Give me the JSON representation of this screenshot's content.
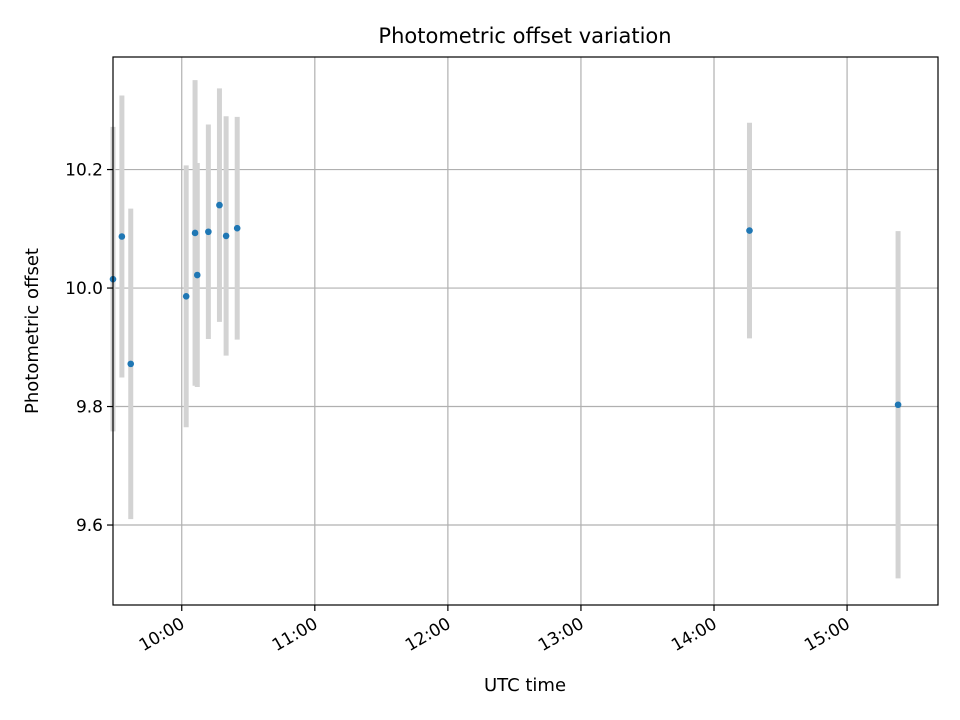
{
  "chart_data": {
    "type": "scatter",
    "title": "Photometric offset variation",
    "xlabel": "UTC time",
    "ylabel": "Photometric offset",
    "x_tick_labels": [
      "10:00",
      "11:00",
      "12:00",
      "13:00",
      "14:00",
      "15:00"
    ],
    "y_tick_labels": [
      "9.6",
      "9.8",
      "10.0",
      "10.2"
    ],
    "xlim": [
      "09:42",
      "15:41"
    ],
    "ylim": [
      9.465,
      10.39
    ],
    "grid": true,
    "marker_color": "#1f77b4",
    "errorbar_color": "#d3d3d3",
    "points": [
      {
        "time": "09:29",
        "y": 10.015,
        "err": 0.257
      },
      {
        "time": "09:33",
        "y": 10.087,
        "err": 0.238
      },
      {
        "time": "09:37",
        "y": 9.872,
        "err": 0.262
      },
      {
        "time": "10:02",
        "y": 9.986,
        "err": 0.221
      },
      {
        "time": "10:06",
        "y": 10.093,
        "err": 0.258
      },
      {
        "time": "10:07",
        "y": 10.022,
        "err": 0.189
      },
      {
        "time": "10:12",
        "y": 10.095,
        "err": 0.181
      },
      {
        "time": "10:17",
        "y": 10.14,
        "err": 0.197
      },
      {
        "time": "10:20",
        "y": 10.088,
        "err": 0.202
      },
      {
        "time": "10:25",
        "y": 10.101,
        "err": 0.188
      },
      {
        "time": "14:16",
        "y": 10.097,
        "err": 0.182
      },
      {
        "time": "15:23",
        "y": 9.803,
        "err": 0.293
      }
    ]
  }
}
